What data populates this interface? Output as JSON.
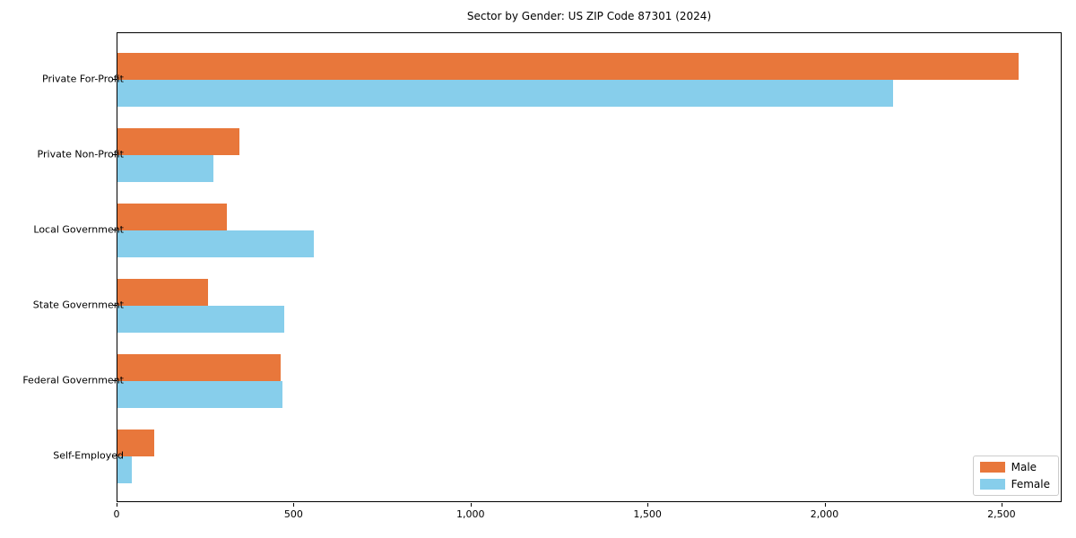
{
  "title": "Sector by Gender: US ZIP Code 87301 (2024)",
  "colors": {
    "male": "#E8773B",
    "female": "#87CEEB",
    "axis": "#000000",
    "legend_border": "#CCCCCC",
    "background": "#FFFFFF"
  },
  "chart_data": {
    "type": "bar",
    "orientation": "horizontal",
    "title": "Sector by Gender: US ZIP Code 87301 (2024)",
    "categories": [
      "Private For-Profit",
      "Private Non-Profit",
      "Local Government",
      "State Government",
      "Federal Government",
      "Self-Employed"
    ],
    "series": [
      {
        "name": "Male",
        "color": "#E8773B",
        "values": [
          2545,
          345,
          310,
          255,
          460,
          105
        ]
      },
      {
        "name": "Female",
        "color": "#87CEEB",
        "values": [
          2190,
          270,
          555,
          470,
          465,
          40
        ]
      }
    ],
    "xlabel": "",
    "ylabel": "",
    "xlim": [
      0,
      2670
    ],
    "xticks": [
      0,
      500,
      1000,
      1500,
      2000,
      2500
    ],
    "xtick_labels": [
      "0",
      "500",
      "1,000",
      "1,500",
      "2,000",
      "2,500"
    ],
    "grid": false,
    "legend_position": "lower right",
    "legend_entries": [
      "Male",
      "Female"
    ]
  }
}
